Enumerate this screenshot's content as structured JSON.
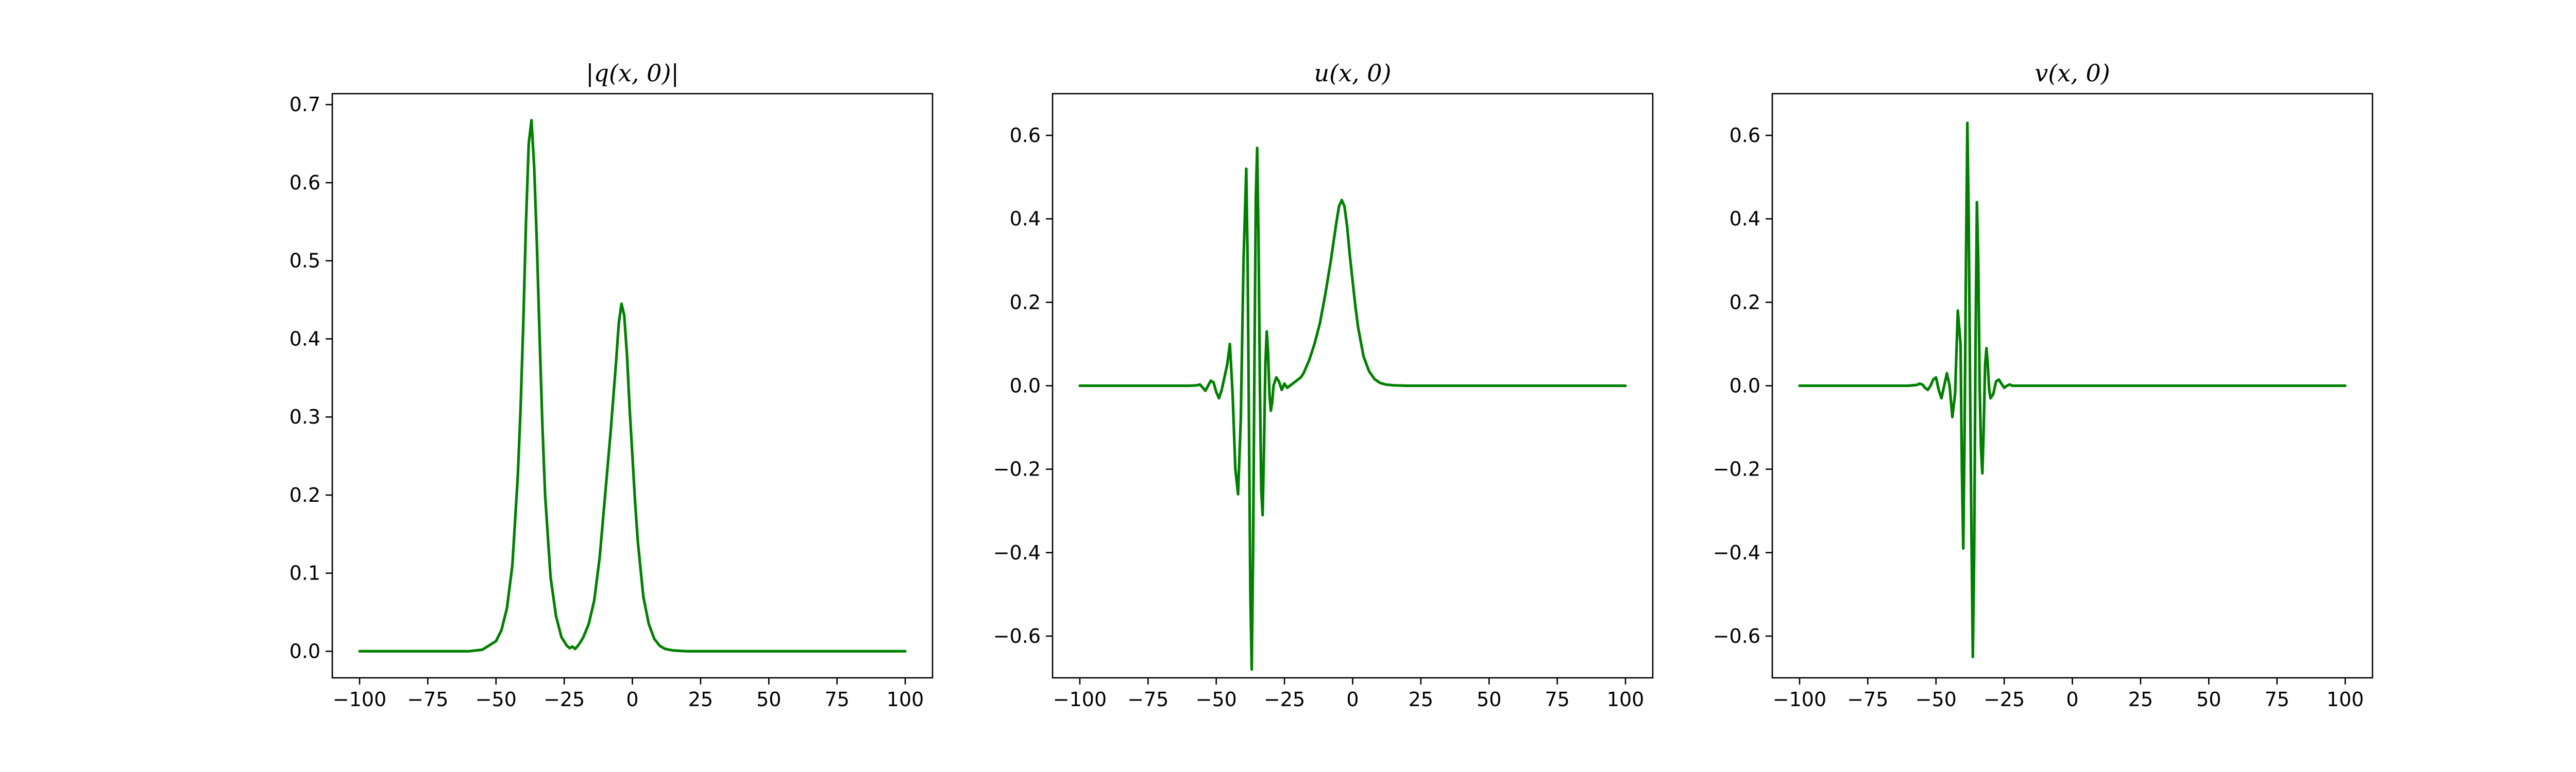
{
  "figure": {
    "line_color": "#008000",
    "axes_color": "#000000",
    "background": "#ffffff"
  },
  "chart_data": [
    {
      "type": "line",
      "title": "|q(x, 0)|",
      "xlabel": "",
      "ylabel": "",
      "xlim": [
        -110,
        110
      ],
      "ylim": [
        -0.034,
        0.714
      ],
      "xticks": [
        -100,
        -75,
        -50,
        -25,
        0,
        25,
        50,
        75,
        100
      ],
      "xtick_labels": [
        "−100",
        "−75",
        "−50",
        "−25",
        "0",
        "25",
        "50",
        "75",
        "100"
      ],
      "yticks": [
        0.0,
        0.1,
        0.2,
        0.3,
        0.4,
        0.5,
        0.6,
        0.7
      ],
      "ytick_labels": [
        "0.0",
        "0.1",
        "0.2",
        "0.3",
        "0.4",
        "0.5",
        "0.6",
        "0.7"
      ],
      "grid": false,
      "series": [
        {
          "color": "#008000",
          "x": [
            -100,
            -80,
            -60,
            -55,
            -50,
            -48,
            -46,
            -44,
            -42,
            -41,
            -40,
            -39,
            -38,
            -37,
            -36,
            -35,
            -34,
            -33,
            -32,
            -30,
            -28,
            -26,
            -24,
            -23,
            -22,
            -21,
            -20,
            -19,
            -18,
            -16,
            -14,
            -12,
            -10,
            -8,
            -6,
            -5,
            -4,
            -3,
            -2,
            -1,
            0,
            1,
            2,
            4,
            6,
            8,
            10,
            12,
            15,
            20,
            30,
            50,
            75,
            100
          ],
          "y": [
            0,
            0,
            0.0,
            0.002,
            0.013,
            0.027,
            0.055,
            0.11,
            0.225,
            0.31,
            0.42,
            0.55,
            0.65,
            0.68,
            0.62,
            0.52,
            0.4,
            0.29,
            0.2,
            0.095,
            0.045,
            0.018,
            0.007,
            0.004,
            0.006,
            0.003,
            0.007,
            0.012,
            0.018,
            0.035,
            0.065,
            0.12,
            0.2,
            0.28,
            0.37,
            0.42,
            0.445,
            0.43,
            0.38,
            0.31,
            0.25,
            0.19,
            0.14,
            0.07,
            0.035,
            0.016,
            0.007,
            0.003,
            0.001,
            0,
            0,
            0,
            0,
            0
          ]
        }
      ]
    },
    {
      "type": "line",
      "title": "u(x, 0)",
      "xlabel": "",
      "ylabel": "",
      "xlim": [
        -110,
        110
      ],
      "ylim": [
        -0.7,
        0.7
      ],
      "xticks": [
        -100,
        -75,
        -50,
        -25,
        0,
        25,
        50,
        75,
        100
      ],
      "xtick_labels": [
        "−100",
        "−75",
        "−50",
        "−25",
        "0",
        "25",
        "50",
        "75",
        "100"
      ],
      "yticks": [
        -0.6,
        -0.4,
        -0.2,
        0.0,
        0.2,
        0.4,
        0.6
      ],
      "ytick_labels": [
        "−0.6",
        "−0.4",
        "−0.2",
        "0.0",
        "0.2",
        "0.4",
        "0.6"
      ],
      "grid": false,
      "series": [
        {
          "color": "#008000",
          "x": [
            -100,
            -70,
            -60,
            -57,
            -56,
            -55,
            -54,
            -53,
            -52,
            -51,
            -50,
            -49,
            -48,
            -47,
            -46,
            -45,
            -44,
            -43,
            -42,
            -41,
            -40,
            -39,
            -38.5,
            -38,
            -37.5,
            -37,
            -36.5,
            -36,
            -35.5,
            -35,
            -34.5,
            -34,
            -33.5,
            -33,
            -32.5,
            -32,
            -31.5,
            -31,
            -30.5,
            -30,
            -29.5,
            -29,
            -28,
            -27,
            -26,
            -25,
            -24,
            -23,
            -22,
            -21,
            -20,
            -19,
            -18,
            -16,
            -14,
            -12,
            -10,
            -8,
            -6,
            -5,
            -4,
            -3,
            -2,
            -1,
            0,
            1,
            2,
            4,
            6,
            8,
            10,
            12,
            15,
            20,
            30,
            50,
            75,
            100
          ],
          "y": [
            0,
            0,
            0.0,
            0.001,
            0.003,
            -0.004,
            -0.012,
            0.0,
            0.012,
            0.008,
            -0.015,
            -0.03,
            -0.01,
            0.02,
            0.05,
            0.1,
            -0.02,
            -0.2,
            -0.26,
            -0.08,
            0.3,
            0.52,
            0.3,
            -0.1,
            -0.5,
            -0.68,
            -0.4,
            0.05,
            0.45,
            0.57,
            0.35,
            0.0,
            -0.25,
            -0.31,
            -0.15,
            0.05,
            0.13,
            0.08,
            -0.02,
            -0.06,
            -0.04,
            0.0,
            0.02,
            0.01,
            -0.01,
            0.005,
            -0.005,
            0.0,
            0.005,
            0.01,
            0.015,
            0.02,
            0.03,
            0.06,
            0.1,
            0.15,
            0.22,
            0.3,
            0.39,
            0.43,
            0.445,
            0.43,
            0.38,
            0.31,
            0.25,
            0.19,
            0.14,
            0.07,
            0.035,
            0.016,
            0.007,
            0.003,
            0.001,
            0,
            0,
            0,
            0,
            0
          ]
        }
      ]
    },
    {
      "type": "line",
      "title": "v(x, 0)",
      "xlabel": "",
      "ylabel": "",
      "xlim": [
        -110,
        110
      ],
      "ylim": [
        -0.7,
        0.7
      ],
      "xticks": [
        -100,
        -75,
        -50,
        -25,
        0,
        25,
        50,
        75,
        100
      ],
      "xtick_labels": [
        "−100",
        "−75",
        "−50",
        "−25",
        "0",
        "25",
        "50",
        "75",
        "100"
      ],
      "yticks": [
        -0.6,
        -0.4,
        -0.2,
        0.0,
        0.2,
        0.4,
        0.6
      ],
      "ytick_labels": [
        "−0.6",
        "−0.4",
        "−0.2",
        "0.0",
        "0.2",
        "0.4",
        "0.6"
      ],
      "grid": false,
      "series": [
        {
          "color": "#008000",
          "x": [
            -100,
            -70,
            -60,
            -57,
            -56,
            -55,
            -54,
            -53,
            -52,
            -51,
            -50,
            -49,
            -48,
            -47,
            -46,
            -45,
            -44,
            -43,
            -42,
            -41,
            -40.5,
            -40,
            -39.5,
            -39,
            -38.5,
            -38,
            -37.5,
            -37,
            -36.5,
            -36,
            -35.5,
            -35,
            -34.5,
            -34,
            -33.5,
            -33,
            -32.5,
            -32,
            -31.5,
            -31,
            -30.5,
            -30,
            -29,
            -28,
            -27,
            -26,
            -25,
            -24,
            -23,
            -22,
            -20,
            -15,
            0,
            25,
            50,
            75,
            100
          ],
          "y": [
            0,
            0,
            0.0,
            0.002,
            0.005,
            0.003,
            -0.005,
            -0.01,
            0.0,
            0.015,
            0.02,
            -0.01,
            -0.03,
            0.0,
            0.03,
            0.0,
            -0.075,
            -0.02,
            0.18,
            0.1,
            -0.2,
            -0.39,
            -0.1,
            0.3,
            0.63,
            0.4,
            0.0,
            -0.35,
            -0.65,
            -0.4,
            0.1,
            0.44,
            0.3,
            0.0,
            -0.15,
            -0.21,
            -0.1,
            0.05,
            0.09,
            0.05,
            -0.01,
            -0.03,
            -0.02,
            0.01,
            0.015,
            0.005,
            -0.005,
            0.0,
            0.003,
            0.0,
            0,
            0,
            0,
            0,
            0,
            0,
            0
          ]
        }
      ]
    }
  ]
}
